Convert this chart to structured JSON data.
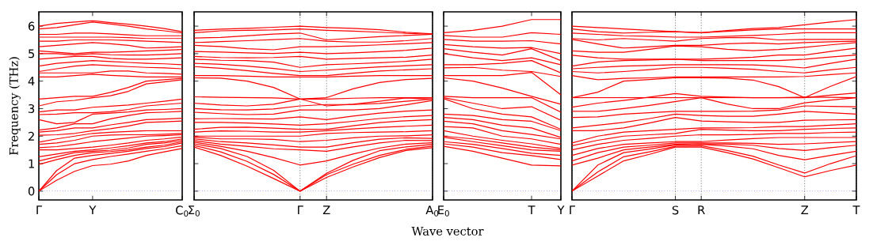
{
  "chart_data": [
    {
      "type": "line",
      "ylabel": "Frequency (THz)",
      "color": "#ff0000",
      "marker": "none",
      "categories": [
        "Γ",
        null,
        null,
        "Y",
        null,
        null,
        null,
        null,
        "C$_{0}$"
      ],
      "ylim": [
        -0.32,
        6.52
      ],
      "yticks": [
        0,
        1,
        2,
        3,
        4,
        5,
        6
      ],
      "ref_lines": [
        {
          "axis": "y",
          "value": 0,
          "color": "#0000ff",
          "line_style": "dotted"
        }
      ],
      "series": [
        {
          "values": [
            0,
            0.4,
            0.72,
            0.93,
            0.98,
            1.1,
            1.3,
            1.43,
            1.55
          ]
        },
        {
          "values": [
            0,
            0.6,
            1.0,
            1.15,
            1.26,
            1.35,
            1.45,
            1.54,
            1.65
          ]
        },
        {
          "values": [
            0,
            0.75,
            1.2,
            1.3,
            1.37,
            1.45,
            1.55,
            1.62,
            1.75
          ]
        },
        {
          "values": [
            0.97,
            1.15,
            1.3,
            1.4,
            1.44,
            1.5,
            1.6,
            1.67,
            1.8
          ]
        },
        {
          "values": [
            1.1,
            1.25,
            1.4,
            1.45,
            1.49,
            1.57,
            1.7,
            1.75,
            1.85
          ]
        },
        {
          "values": [
            1.25,
            1.35,
            1.45,
            1.5,
            1.57,
            1.65,
            1.75,
            1.8,
            1.9
          ]
        },
        {
          "values": [
            1.5,
            1.5,
            1.55,
            1.6,
            1.67,
            1.75,
            1.85,
            1.9,
            1.97
          ]
        },
        {
          "values": [
            1.58,
            1.62,
            1.7,
            1.8,
            1.87,
            1.93,
            2.0,
            2.02,
            2.05
          ]
        },
        {
          "values": [
            1.7,
            1.75,
            1.85,
            2.0,
            2.04,
            2.05,
            2.05,
            2.07,
            2.1
          ]
        },
        {
          "values": [
            1.78,
            1.9,
            2.0,
            2.1,
            2.14,
            2.17,
            2.2,
            2.2,
            2.2
          ]
        },
        {
          "values": [
            2.03,
            2.05,
            2.1,
            2.2,
            2.27,
            2.37,
            2.5,
            2.52,
            2.55
          ]
        },
        {
          "values": [
            2.15,
            2.2,
            2.3,
            2.3,
            2.41,
            2.5,
            2.6,
            2.62,
            2.65
          ]
        },
        {
          "values": [
            2.22,
            2.3,
            2.45,
            2.45,
            2.63,
            2.75,
            2.85,
            2.87,
            2.9
          ]
        },
        {
          "values": [
            2.6,
            2.45,
            2.5,
            2.8,
            2.84,
            2.88,
            2.95,
            2.97,
            3.0
          ]
        },
        {
          "values": [
            2.78,
            2.8,
            2.85,
            2.85,
            2.89,
            2.97,
            3.1,
            3.15,
            3.2
          ]
        },
        {
          "values": [
            2.88,
            2.95,
            2.95,
            3.05,
            3.09,
            3.13,
            3.2,
            3.27,
            3.35
          ]
        },
        {
          "values": [
            3.1,
            3.25,
            3.3,
            3.4,
            3.47,
            3.63,
            3.9,
            3.97,
            4.05
          ]
        },
        {
          "values": [
            3.35,
            3.4,
            3.45,
            3.45,
            3.59,
            3.77,
            4.0,
            4.05,
            4.1
          ]
        },
        {
          "values": [
            4.15,
            4.15,
            4.2,
            4.25,
            4.21,
            4.18,
            4.15,
            4.15,
            4.15
          ]
        },
        {
          "values": [
            4.3,
            4.3,
            4.3,
            4.3,
            4.37,
            4.37,
            4.3,
            4.28,
            4.25
          ]
        },
        {
          "values": [
            4.35,
            4.45,
            4.55,
            4.6,
            4.56,
            4.53,
            4.5,
            4.48,
            4.45
          ]
        },
        {
          "values": [
            4.55,
            4.65,
            4.7,
            4.75,
            4.71,
            4.68,
            4.65,
            4.63,
            4.6
          ]
        },
        {
          "values": [
            4.8,
            4.85,
            4.9,
            4.9,
            4.83,
            4.8,
            4.8,
            4.82,
            4.85
          ]
        },
        {
          "values": [
            5.0,
            5.0,
            4.95,
            5.0,
            4.96,
            4.95,
            4.95,
            4.97,
            5.0
          ]
        },
        {
          "values": [
            5.1,
            5.05,
            5.0,
            5.05,
            5.05,
            5.07,
            5.1,
            5.12,
            5.15
          ]
        },
        {
          "values": [
            5.25,
            5.3,
            5.35,
            5.4,
            5.36,
            5.3,
            5.2,
            5.22,
            5.25
          ]
        },
        {
          "values": [
            5.45,
            5.45,
            5.5,
            5.5,
            5.5,
            5.48,
            5.45,
            5.43,
            5.4
          ]
        },
        {
          "values": [
            5.6,
            5.6,
            5.6,
            5.6,
            5.6,
            5.58,
            5.55,
            5.55,
            5.55
          ]
        },
        {
          "values": [
            5.7,
            5.7,
            5.75,
            5.75,
            5.72,
            5.68,
            5.65,
            5.65,
            5.65
          ]
        },
        {
          "values": [
            5.9,
            5.95,
            6.05,
            6.15,
            6.08,
            6.0,
            5.9,
            5.83,
            5.75
          ]
        },
        {
          "values": [
            6.0,
            6.1,
            6.15,
            6.2,
            6.13,
            6.07,
            6.0,
            5.91,
            5.8
          ]
        }
      ]
    },
    {
      "type": "line",
      "xlabel": "Wave vector",
      "color": "#ff0000",
      "marker": "none",
      "grid": "x",
      "tick_labels": "x",
      "categories": [
        "Σ$_{0}$",
        null,
        null,
        null,
        "Γ",
        "Z",
        null,
        null,
        null,
        "A$_{0}$"
      ],
      "ylim": [
        -0.32,
        6.52
      ],
      "yticks": [
        0,
        1,
        2,
        3,
        4,
        5,
        6
      ],
      "ref_lines": [
        {
          "axis": "y",
          "value": 0,
          "color": "#0000ff",
          "line_style": "dotted"
        }
      ],
      "series": [
        {
          "values": [
            1.6,
            1.3,
            0.91,
            0.46,
            0,
            0.5,
            0.88,
            1.22,
            1.48,
            1.58
          ]
        },
        {
          "values": [
            1.66,
            1.43,
            1.08,
            0.61,
            0,
            0.6,
            0.98,
            1.3,
            1.52,
            1.64
          ]
        },
        {
          "values": [
            1.72,
            1.55,
            1.26,
            0.76,
            0,
            0.65,
            1.12,
            1.47,
            1.61,
            1.7
          ]
        },
        {
          "values": [
            1.78,
            1.63,
            1.45,
            1.22,
            0.95,
            1.1,
            1.35,
            1.57,
            1.71,
            1.76
          ]
        },
        {
          "values": [
            1.84,
            1.71,
            1.63,
            1.54,
            1.5,
            1.45,
            1.61,
            1.75,
            1.85,
            1.84
          ]
        },
        {
          "values": [
            1.9,
            1.8,
            1.75,
            1.68,
            1.6,
            1.6,
            1.76,
            1.89,
            1.94,
            1.92
          ]
        },
        {
          "values": [
            1.96,
            1.9,
            1.9,
            1.88,
            1.8,
            1.85,
            1.94,
            2.0,
            2.01,
            2.05
          ]
        },
        {
          "values": [
            2.0,
            2.0,
            2.0,
            2.0,
            2.0,
            2.1,
            2.13,
            2.15,
            2.16,
            2.2
          ]
        },
        {
          "values": [
            2.15,
            2.19,
            2.18,
            2.15,
            2.15,
            2.2,
            2.26,
            2.32,
            2.36,
            2.4
          ]
        },
        {
          "values": [
            2.25,
            2.32,
            2.33,
            2.29,
            2.25,
            2.25,
            2.38,
            2.49,
            2.56,
            2.6
          ]
        },
        {
          "values": [
            2.5,
            2.5,
            2.48,
            2.44,
            2.4,
            2.45,
            2.54,
            2.64,
            2.71,
            2.75
          ]
        },
        {
          "values": [
            2.63,
            2.64,
            2.63,
            2.62,
            2.7,
            2.6,
            2.73,
            2.84,
            2.91,
            2.95
          ]
        },
        {
          "values": [
            2.87,
            2.82,
            2.78,
            2.8,
            2.95,
            2.95,
            2.95,
            3.0,
            3.14,
            3.3
          ]
        },
        {
          "values": [
            3.0,
            2.96,
            2.95,
            2.99,
            3.1,
            3.15,
            3.15,
            3.19,
            3.27,
            3.35
          ]
        },
        {
          "values": [
            3.2,
            3.13,
            3.1,
            3.16,
            3.35,
            3.1,
            3.16,
            3.27,
            3.39,
            3.35
          ]
        },
        {
          "values": [
            3.43,
            3.41,
            3.4,
            3.39,
            3.35,
            3.35,
            3.38,
            3.4,
            3.4,
            3.4
          ]
        },
        {
          "values": [
            4.12,
            4.11,
            4.0,
            3.77,
            3.35,
            3.4,
            3.72,
            3.95,
            4.06,
            4.1
          ]
        },
        {
          "values": [
            4.2,
            4.2,
            4.18,
            4.15,
            4.15,
            4.15,
            4.18,
            4.2,
            4.2,
            4.2
          ]
        },
        {
          "values": [
            4.53,
            4.47,
            4.38,
            4.28,
            4.2,
            4.2,
            4.29,
            4.37,
            4.41,
            4.45
          ]
        },
        {
          "values": [
            4.65,
            4.61,
            4.55,
            4.46,
            4.35,
            4.4,
            4.46,
            4.52,
            4.56,
            4.6
          ]
        },
        {
          "values": [
            4.8,
            4.76,
            4.75,
            4.69,
            4.5,
            4.6,
            4.63,
            4.67,
            4.72,
            4.8
          ]
        },
        {
          "values": [
            4.9,
            4.86,
            4.85,
            4.86,
            4.9,
            4.8,
            4.83,
            4.85,
            4.87,
            4.95
          ]
        },
        {
          "values": [
            5.08,
            5.06,
            5.03,
            5.01,
            5.05,
            5.0,
            5.03,
            5.07,
            5.12,
            5.2
          ]
        },
        {
          "values": [
            5.3,
            5.26,
            5.18,
            5.14,
            5.25,
            5.25,
            5.28,
            5.32,
            5.36,
            5.4
          ]
        },
        {
          "values": [
            5.4,
            5.44,
            5.47,
            5.51,
            5.55,
            5.45,
            5.42,
            5.42,
            5.47,
            5.55
          ]
        },
        {
          "values": [
            5.57,
            5.59,
            5.65,
            5.71,
            5.75,
            5.5,
            5.56,
            5.62,
            5.66,
            5.7
          ]
        },
        {
          "values": [
            5.76,
            5.83,
            5.85,
            5.86,
            5.9,
            5.85,
            5.82,
            5.78,
            5.74,
            5.7
          ]
        },
        {
          "values": [
            5.85,
            5.89,
            5.92,
            5.96,
            6.0,
            5.95,
            5.92,
            5.87,
            5.78,
            5.72
          ]
        }
      ]
    },
    {
      "type": "line",
      "color": "#ff0000",
      "marker": "none",
      "tick_labels": "x",
      "categories": [
        "E$_{0}$",
        null,
        null,
        "T",
        "Y"
      ],
      "ylim": [
        -0.32,
        6.52
      ],
      "yticks": [
        0,
        1,
        2,
        3,
        4,
        5,
        6
      ],
      "ref_lines": [
        {
          "axis": "y",
          "value": 0,
          "color": "#0000ff",
          "line_style": "dotted"
        }
      ],
      "series": [
        {
          "values": [
            1.63,
            1.45,
            1.2,
            0.95,
            0.92
          ]
        },
        {
          "values": [
            1.72,
            1.6,
            1.4,
            1.29,
            1.15
          ]
        },
        {
          "values": [
            1.8,
            1.7,
            1.55,
            1.38,
            1.3
          ]
        },
        {
          "values": [
            1.96,
            1.8,
            1.65,
            1.5,
            1.45
          ]
        },
        {
          "values": [
            2.0,
            1.9,
            1.75,
            1.6,
            1.5
          ]
        },
        {
          "values": [
            2.2,
            2.0,
            1.85,
            1.72,
            1.55
          ]
        },
        {
          "values": [
            2.35,
            2.3,
            2.0,
            1.9,
            1.7
          ]
        },
        {
          "values": [
            2.54,
            2.45,
            2.2,
            2.06,
            1.9
          ]
        },
        {
          "values": [
            2.68,
            2.6,
            2.4,
            2.3,
            1.95
          ]
        },
        {
          "values": [
            2.8,
            2.75,
            2.6,
            2.54,
            2.2
          ]
        },
        {
          "values": [
            3.36,
            3.0,
            2.8,
            2.7,
            2.25
          ]
        },
        {
          "values": [
            3.4,
            3.2,
            3.0,
            3.07,
            2.58
          ]
        },
        {
          "values": [
            3.45,
            3.4,
            3.4,
            3.4,
            2.87
          ]
        },
        {
          "values": [
            4.12,
            4.0,
            3.75,
            3.45,
            3.16
          ]
        },
        {
          "values": [
            4.2,
            4.2,
            4.2,
            4.32,
            3.5
          ]
        },
        {
          "values": [
            4.48,
            4.5,
            4.4,
            4.35,
            4.17
          ]
        },
        {
          "values": [
            4.6,
            4.6,
            4.65,
            4.75,
            4.3
          ]
        },
        {
          "values": [
            5.0,
            4.85,
            4.75,
            4.85,
            4.6
          ]
        },
        {
          "values": [
            5.18,
            5.05,
            4.95,
            5.18,
            4.75
          ]
        },
        {
          "values": [
            5.33,
            5.25,
            5.2,
            5.22,
            5.0
          ]
        },
        {
          "values": [
            5.52,
            5.45,
            5.45,
            5.47,
            5.35
          ]
        },
        {
          "values": [
            5.66,
            5.6,
            5.6,
            5.76,
            5.7
          ]
        },
        {
          "values": [
            5.76,
            5.85,
            6.0,
            6.24,
            6.24
          ]
        }
      ]
    },
    {
      "type": "line",
      "color": "#ff0000",
      "marker": "none",
      "grid": "x",
      "tick_labels": "x",
      "categories": [
        "Γ",
        null,
        null,
        null,
        "S",
        "R",
        null,
        null,
        null,
        "Z",
        null,
        "T"
      ],
      "ylim": [
        -0.32,
        6.52
      ],
      "yticks": [
        0,
        1,
        2,
        3,
        4,
        5,
        6
      ],
      "ref_lines": [
        {
          "axis": "y",
          "value": 0,
          "color": "#0000ff",
          "line_style": "dotted"
        }
      ],
      "series": [
        {
          "values": [
            0,
            0.55,
            1.1,
            1.34,
            1.6,
            1.6,
            1.4,
            1.17,
            0.85,
            0.52,
            0.75,
            0.95
          ]
        },
        {
          "values": [
            0,
            0.7,
            1.25,
            1.43,
            1.63,
            1.65,
            1.48,
            1.27,
            0.95,
            0.66,
            1.0,
            1.29
          ]
        },
        {
          "values": [
            0,
            0.95,
            1.4,
            1.53,
            1.68,
            1.7,
            1.64,
            1.54,
            1.3,
            1.14,
            1.3,
            1.45
          ]
        },
        {
          "values": [
            0.95,
            1.2,
            1.5,
            1.6,
            1.7,
            1.72,
            1.71,
            1.67,
            1.55,
            1.48,
            1.58,
            1.67
          ]
        },
        {
          "values": [
            1.1,
            1.4,
            1.6,
            1.67,
            1.75,
            1.75,
            1.75,
            1.74,
            1.7,
            1.72,
            1.76,
            1.8
          ]
        },
        {
          "values": [
            1.3,
            1.55,
            1.7,
            1.75,
            1.8,
            1.8,
            1.86,
            1.91,
            1.95,
            1.95,
            1.95,
            1.95
          ]
        },
        {
          "values": [
            1.5,
            1.7,
            1.85,
            1.92,
            2.0,
            2.05,
            2.05,
            2.06,
            2.1,
            2.1,
            2.13,
            2.15
          ]
        },
        {
          "values": [
            1.65,
            1.85,
            2.0,
            2.05,
            2.1,
            2.25,
            2.22,
            2.2,
            2.2,
            2.25,
            2.28,
            2.3
          ]
        },
        {
          "values": [
            1.75,
            2.0,
            2.15,
            2.2,
            2.25,
            2.3,
            2.3,
            2.31,
            2.35,
            2.35,
            2.4,
            2.45
          ]
        },
        {
          "values": [
            2.2,
            2.2,
            2.3,
            2.48,
            2.68,
            2.55,
            2.52,
            2.5,
            2.5,
            2.58,
            2.59,
            2.6
          ]
        },
        {
          "values": [
            2.3,
            2.4,
            2.5,
            2.64,
            2.8,
            2.75,
            2.72,
            2.72,
            2.8,
            2.9,
            2.85,
            2.8
          ]
        },
        {
          "values": [
            2.68,
            2.7,
            2.8,
            2.85,
            2.9,
            2.9,
            2.9,
            2.91,
            2.95,
            3.1,
            3.08,
            3.07
          ]
        },
        {
          "values": [
            2.9,
            2.9,
            3.0,
            3.12,
            3.26,
            3.4,
            3.17,
            3.0,
            3.0,
            3.21,
            3.31,
            3.4
          ]
        },
        {
          "values": [
            3.05,
            3.2,
            3.3,
            3.42,
            3.55,
            3.45,
            3.42,
            3.4,
            3.4,
            3.4,
            3.49,
            3.57
          ]
        },
        {
          "values": [
            3.4,
            3.6,
            4.0,
            4.06,
            4.12,
            4.12,
            4.11,
            4.04,
            3.8,
            3.4,
            3.81,
            4.17
          ]
        },
        {
          "values": [
            3.4,
            3.4,
            3.4,
            3.4,
            3.4,
            3.4,
            3.4,
            3.4,
            3.4,
            3.42,
            3.41,
            3.4
          ]
        },
        {
          "values": [
            4.2,
            4.05,
            4.1,
            4.12,
            4.15,
            4.15,
            4.15,
            4.15,
            4.15,
            4.17,
            4.24,
            4.3
          ]
        },
        {
          "values": [
            4.35,
            4.3,
            4.35,
            4.42,
            4.5,
            4.5,
            4.47,
            4.43,
            4.35,
            4.3,
            4.41,
            4.5
          ]
        },
        {
          "values": [
            4.45,
            4.5,
            4.55,
            4.57,
            4.6,
            4.6,
            4.6,
            4.59,
            4.55,
            4.48,
            4.65,
            4.8
          ]
        },
        {
          "values": [
            4.55,
            4.7,
            4.75,
            4.77,
            4.8,
            4.75,
            4.75,
            4.75,
            4.75,
            4.8,
            4.88,
            4.95
          ]
        },
        {
          "values": [
            4.94,
            4.85,
            4.8,
            4.8,
            4.8,
            4.8,
            4.83,
            4.87,
            4.95,
            4.95,
            5.08,
            5.2
          ]
        },
        {
          "values": [
            5.1,
            5.05,
            5.05,
            5.16,
            5.28,
            5.25,
            5.16,
            5.11,
            5.15,
            5.23,
            5.32,
            5.4
          ]
        },
        {
          "values": [
            5.52,
            5.35,
            5.2,
            5.25,
            5.3,
            5.3,
            5.36,
            5.39,
            5.35,
            5.4,
            5.43,
            5.45
          ]
        },
        {
          "values": [
            5.55,
            5.5,
            5.55,
            5.5,
            5.45,
            5.55,
            5.58,
            5.58,
            5.5,
            5.52,
            5.52,
            5.52
          ]
        },
        {
          "values": [
            5.75,
            5.7,
            5.65,
            5.63,
            5.6,
            5.6,
            5.63,
            5.66,
            5.7,
            5.76,
            5.76,
            5.76
          ]
        },
        {
          "values": [
            5.9,
            5.8,
            5.75,
            5.78,
            5.8,
            5.76,
            5.81,
            5.86,
            5.9,
            5.9,
            5.9,
            5.9
          ]
        },
        {
          "values": [
            6.0,
            5.95,
            5.9,
            5.85,
            5.8,
            5.76,
            5.84,
            5.91,
            5.95,
            6.05,
            6.15,
            6.24
          ]
        }
      ]
    }
  ]
}
